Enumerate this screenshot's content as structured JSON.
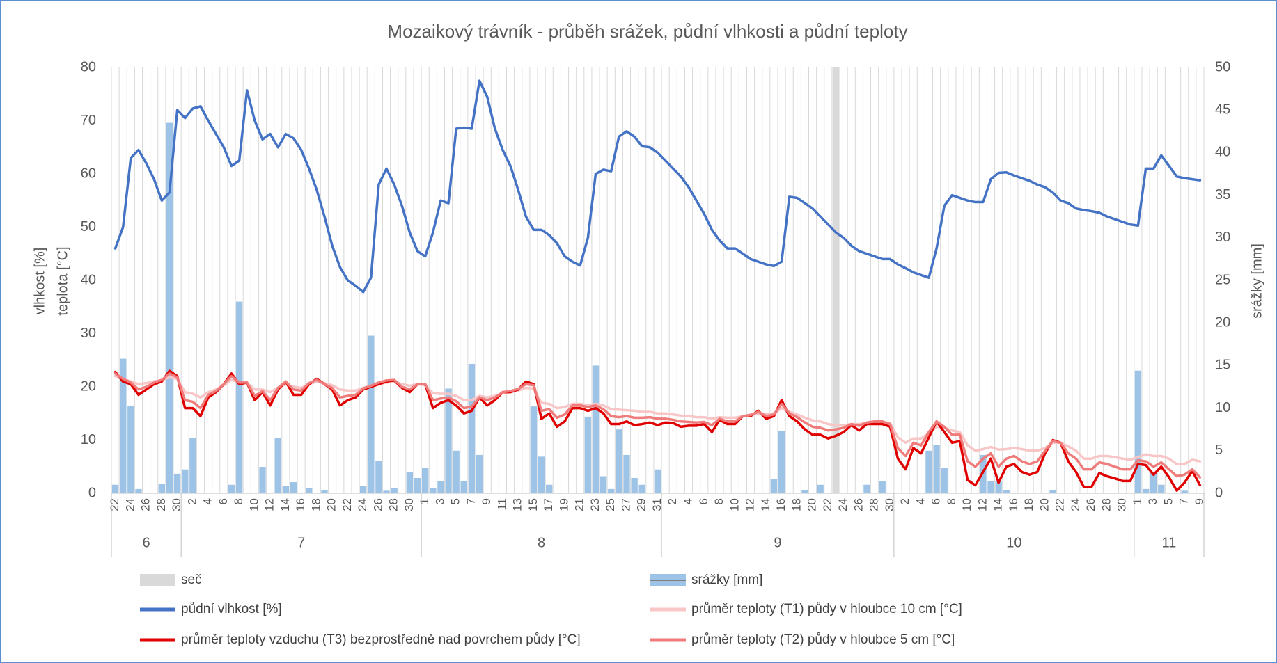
{
  "chart_data": {
    "type": "combo",
    "title": "Mozaikový trávník - průběh srážek, půdní vlhkosti a půdní teploty",
    "ylabel": [
      "vlhkost [%]",
      "teplota [°C]"
    ],
    "y2label": "srážky [mm]",
    "ylim": [
      0,
      80
    ],
    "yticks": [
      0,
      10,
      20,
      30,
      40,
      50,
      60,
      70,
      80
    ],
    "y2lim": [
      0,
      50
    ],
    "y2ticks": [
      0,
      5,
      10,
      15,
      20,
      25,
      30,
      35,
      40,
      45,
      50
    ],
    "grid_x": true,
    "legend": "bottom",
    "months": [
      "6",
      "7",
      "8",
      "9",
      "10",
      "11"
    ],
    "categories": [
      "22",
      null,
      "24",
      null,
      "26",
      null,
      "28",
      null,
      "30",
      null,
      "2",
      null,
      "4",
      null,
      "6",
      null,
      "8",
      null,
      "10",
      null,
      "12",
      null,
      "14",
      null,
      "16",
      null,
      "18",
      null,
      "20",
      null,
      "22",
      null,
      "24",
      null,
      "26",
      null,
      "28",
      null,
      "30",
      null,
      "1",
      null,
      "3",
      null,
      "5",
      null,
      "7",
      null,
      "9",
      null,
      "11",
      null,
      "13",
      null,
      "15",
      null,
      "17",
      null,
      "19",
      null,
      "21",
      null,
      "23",
      null,
      "25",
      null,
      "27",
      null,
      "29",
      null,
      "31",
      null,
      "2",
      null,
      "4",
      null,
      "6",
      null,
      "8",
      null,
      "10",
      null,
      "12",
      null,
      "14",
      null,
      "16",
      null,
      "18",
      null,
      "20",
      null,
      "22",
      null,
      "24",
      null,
      "26",
      null,
      "28",
      null,
      "30",
      null,
      "2",
      null,
      "4",
      null,
      "6",
      null,
      "8",
      null,
      "10",
      null,
      "12",
      null,
      "14",
      null,
      "16",
      null,
      "18",
      null,
      "20",
      null,
      "22",
      null,
      "24",
      null,
      "26",
      null,
      "28",
      null,
      "30",
      null,
      "1",
      null,
      "3",
      null,
      "5",
      null,
      "7",
      null,
      "9"
    ],
    "series": [
      {
        "name": "seč",
        "type": "bar",
        "axis": "y2",
        "color": "#d9d9d9",
        "values": [
          null,
          null,
          null,
          null,
          null,
          null,
          null,
          null,
          null,
          null,
          null,
          null,
          null,
          null,
          null,
          null,
          null,
          null,
          null,
          null,
          null,
          null,
          null,
          null,
          null,
          null,
          null,
          null,
          null,
          null,
          null,
          null,
          null,
          null,
          null,
          null,
          null,
          null,
          null,
          null,
          null,
          null,
          null,
          null,
          null,
          null,
          null,
          null,
          null,
          null,
          null,
          null,
          null,
          null,
          null,
          null,
          null,
          null,
          null,
          null,
          null,
          null,
          null,
          null,
          null,
          null,
          null,
          null,
          null,
          null,
          null,
          null,
          null,
          null,
          null,
          null,
          null,
          null,
          null,
          null,
          null,
          null,
          null,
          null,
          null,
          null,
          null,
          null,
          null,
          null,
          null,
          null,
          null,
          50,
          null,
          null,
          null,
          null,
          null,
          null,
          null,
          null,
          null,
          null,
          null,
          null,
          null,
          null,
          null,
          null,
          null,
          null,
          null,
          null,
          null,
          null,
          null,
          null,
          null,
          null,
          null,
          null,
          null,
          null,
          null,
          null,
          null,
          null,
          null,
          null,
          null,
          null,
          null,
          null,
          null,
          null,
          null,
          null,
          null,
          null,
          null
        ]
      },
      {
        "name": "srážky [mm]",
        "type": "bar",
        "axis": "y2",
        "color": "#9dc3e6",
        "values": [
          1,
          15.8,
          10.3,
          0.5,
          0,
          0,
          1.1,
          43.5,
          2.3,
          2.8,
          6.5,
          0,
          0,
          0,
          0,
          1,
          22.5,
          0,
          0,
          3.1,
          0,
          6.5,
          0.9,
          1.3,
          0,
          0.6,
          0,
          0.4,
          0,
          0,
          0,
          0,
          0.9,
          18.5,
          3.8,
          0.3,
          0.6,
          0,
          2.5,
          1.8,
          3,
          0.6,
          1.4,
          12.3,
          5,
          1.4,
          15.2,
          4.5,
          0,
          0,
          0,
          0,
          0,
          0,
          10.2,
          4.3,
          1,
          0,
          0,
          0,
          0,
          9,
          15,
          2,
          0.5,
          7.5,
          4.5,
          1.8,
          1,
          0,
          2.8,
          0,
          0,
          0,
          0,
          0,
          0,
          0,
          0,
          0,
          0,
          0,
          0,
          0,
          0,
          1.7,
          7.3,
          0,
          0,
          0.4,
          0,
          1,
          0,
          0,
          0,
          0,
          0,
          1,
          0,
          1.4,
          0,
          0,
          0,
          0,
          0,
          5,
          5.7,
          3,
          0,
          0,
          0,
          0,
          4.5,
          1.4,
          1.4,
          0.4,
          0,
          0,
          0,
          0,
          0,
          0.4,
          0,
          0,
          0,
          0,
          0,
          0,
          0,
          0,
          0,
          0,
          14.4,
          0.5,
          2.5,
          1,
          0,
          0,
          0.3,
          0,
          0
        ]
      },
      {
        "name": "půdní vlhkost [%]",
        "type": "line",
        "width": 3.5,
        "color": "#4472c4",
        "values": [
          46,
          50,
          63,
          64.5,
          62,
          59,
          55,
          56.5,
          72,
          70.5,
          72.3,
          72.7,
          70,
          67.5,
          65,
          61.5,
          62.5,
          75.7,
          70,
          66.5,
          67.5,
          65,
          67.5,
          66.7,
          64.5,
          61,
          57,
          52,
          46.5,
          42.5,
          40,
          39,
          37.8,
          40.5,
          58,
          61,
          58,
          54,
          49,
          45.5,
          44.5,
          49,
          55,
          54.5,
          68.5,
          68.7,
          68.5,
          77.5,
          74.5,
          68.5,
          64.5,
          61.5,
          57,
          52,
          49.5,
          49.5,
          48.5,
          47,
          44.5,
          43.5,
          42.8,
          48,
          60,
          60.8,
          60.5,
          67,
          68,
          67,
          65.2,
          65,
          64,
          62.5,
          61,
          59.5,
          57.5,
          55,
          52.5,
          49.5,
          47.5,
          46,
          46,
          45,
          44,
          43.5,
          43,
          42.7,
          43.5,
          55.7,
          55.5,
          54.5,
          53.5,
          52,
          50.5,
          49,
          48,
          46.5,
          45.5,
          45,
          44.5,
          44,
          44,
          43,
          42.3,
          41.5,
          41,
          40.5,
          46,
          54,
          56,
          55.5,
          55,
          54.7,
          54.7,
          59,
          60.2,
          60.3,
          59.7,
          59.2,
          58.7,
          58,
          57.5,
          56.5,
          55,
          54.5,
          53.5,
          53.2,
          53,
          52.7,
          52,
          51.5,
          51,
          50.5,
          50.3,
          61,
          61,
          63.5,
          61.5,
          59.5,
          59.2,
          59,
          58.8
        ]
      },
      {
        "name": "průměr teploty (T1) půdy v hloubce 10 cm [°C]",
        "type": "line",
        "width": 3.5,
        "color": "#f8c6c6",
        "values": [
          22,
          21.5,
          21,
          20.5,
          20.7,
          21,
          21.3,
          21.8,
          21.5,
          19,
          18.7,
          18,
          19,
          19.5,
          20.3,
          21.3,
          20.8,
          20.7,
          19.5,
          19.5,
          19,
          19.8,
          20.5,
          20,
          19.8,
          20.5,
          21,
          20.7,
          20.3,
          19.5,
          19.3,
          19.3,
          19.8,
          20.2,
          20.5,
          20.8,
          21,
          20.5,
          20.2,
          20.5,
          20.3,
          18.8,
          18.7,
          18.7,
          18.3,
          17.5,
          17.5,
          18.3,
          18,
          18.3,
          18.8,
          19,
          19.3,
          19.8,
          19.7,
          17,
          16.8,
          16,
          16.2,
          16.8,
          16.8,
          16.5,
          16.8,
          16.5,
          15.8,
          15.7,
          15.6,
          15.5,
          15.3,
          15.3,
          15,
          15,
          14.8,
          14.6,
          14.5,
          14.3,
          14.3,
          14,
          14.3,
          14.2,
          14.2,
          14.5,
          14.8,
          15,
          14.8,
          15,
          16,
          15.3,
          14.8,
          14.2,
          13.7,
          13.5,
          13,
          12.8,
          12.8,
          13,
          13,
          13.2,
          13.3,
          13.3,
          13.2,
          10.5,
          9.5,
          10.3,
          10.3,
          11.3,
          12.5,
          12.3,
          11.8,
          11.5,
          9,
          8,
          8.3,
          8.7,
          8.2,
          8.3,
          8.5,
          8.3,
          8,
          8,
          8.5,
          9.5,
          9.5,
          8.8,
          8,
          6.5,
          6.5,
          7,
          7,
          6.8,
          6.5,
          6.3,
          6.8,
          7.3,
          7,
          7,
          6.5,
          5.5,
          5.5,
          6.3,
          6
        ]
      },
      {
        "name": "průměr teploty vzduchu (T3) bezprostředně nad povrchem půdy [°C]",
        "type": "line",
        "width": 3.5,
        "color": "#e00000",
        "values": [
          22.8,
          21,
          20.5,
          18.5,
          19.5,
          20.5,
          21,
          23,
          22,
          16,
          16,
          14.5,
          18,
          19,
          20.5,
          22.5,
          20.5,
          20.8,
          17.5,
          19,
          16.5,
          19.5,
          21,
          18.5,
          18.5,
          20.5,
          21.5,
          20.5,
          19.5,
          16.5,
          17.5,
          18,
          19.5,
          20,
          20.5,
          21,
          21.2,
          19.8,
          19,
          20.5,
          20.5,
          16,
          17,
          17.5,
          16.5,
          15,
          15.5,
          18,
          16.5,
          17.5,
          19,
          19,
          19.5,
          21,
          20.5,
          14,
          15,
          12.5,
          13.5,
          16,
          16,
          15.5,
          16,
          15,
          13,
          13,
          13.5,
          12.8,
          13,
          13.3,
          12.8,
          13.3,
          13.2,
          12.5,
          12.7,
          12.7,
          13,
          11.5,
          13.8,
          13,
          13,
          14.5,
          14.5,
          15.5,
          14,
          14.5,
          17.5,
          14.5,
          13.5,
          12,
          11,
          11,
          10.3,
          10.8,
          11.5,
          12.8,
          11.8,
          13,
          13,
          13,
          12.5,
          6.5,
          4.5,
          8.5,
          7.5,
          10.5,
          13.5,
          11.5,
          9.5,
          9.8,
          2.5,
          1.5,
          4,
          6.5,
          2,
          5,
          5.5,
          4,
          3.5,
          4,
          7.5,
          10,
          9.5,
          6,
          4,
          1.2,
          1.2,
          3.8,
          3.2,
          2.8,
          2.3,
          2.3,
          5.5,
          5.3,
          3.5,
          5,
          3,
          0.5,
          2,
          4.2,
          1.5
        ]
      },
      {
        "name": "průměr teploty (T2) půdy v hloubce 5 cm [°C]",
        "type": "line",
        "width": 3.5,
        "color": "#f07b7b",
        "values": [
          22.5,
          21.5,
          20.8,
          19.5,
          20,
          20.8,
          21.3,
          22.5,
          21.8,
          17.5,
          17.2,
          16,
          18.5,
          19.2,
          20.5,
          22,
          20.8,
          20.8,
          18.3,
          19.2,
          17.5,
          19.8,
          21,
          19.5,
          19.3,
          20.7,
          21.3,
          20.5,
          19.8,
          18,
          18.3,
          18.5,
          19.7,
          20.2,
          20.8,
          21.2,
          21.3,
          20,
          19.5,
          20.5,
          20.5,
          17.5,
          17.8,
          18,
          17.3,
          16,
          16.3,
          18,
          17.5,
          18,
          19,
          19.2,
          19.6,
          20.5,
          20.3,
          15.5,
          15.8,
          14.2,
          14.8,
          16.5,
          16.5,
          16.2,
          16.5,
          15.8,
          14.5,
          14.3,
          14.5,
          14.2,
          14.2,
          14.3,
          14,
          14,
          13.8,
          13.5,
          13.4,
          13.3,
          13.4,
          12.8,
          14,
          13.5,
          13.5,
          14.5,
          14.7,
          15.3,
          14.5,
          14.8,
          16.8,
          15,
          14.3,
          13.3,
          12.5,
          12.3,
          11.8,
          12,
          12.3,
          13,
          12.7,
          13.3,
          13.5,
          13.5,
          13,
          8.5,
          7,
          9.5,
          9,
          11.5,
          13.5,
          12.5,
          11,
          11,
          6,
          5,
          6.5,
          7.5,
          5,
          6.5,
          7,
          6,
          5.5,
          6,
          8,
          9.8,
          9.5,
          7.5,
          6.5,
          4.5,
          4.5,
          5.8,
          5.5,
          5,
          4.5,
          4.5,
          6.2,
          6,
          5,
          5.8,
          4.5,
          3.2,
          3.5,
          4.5,
          3
        ]
      }
    ]
  }
}
